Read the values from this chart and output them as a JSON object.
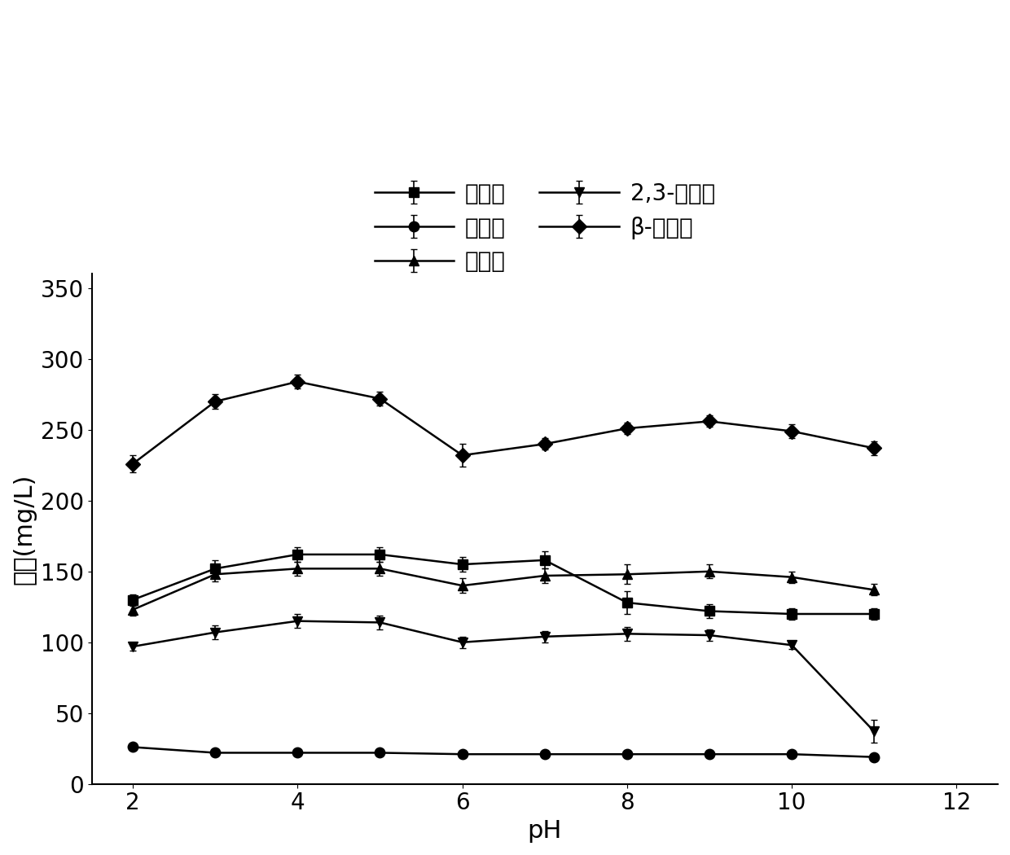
{
  "x": [
    2,
    3,
    4,
    5,
    6,
    7,
    8,
    9,
    10,
    11
  ],
  "series_order": [
    "正丙醇",
    "异丁醇",
    "异戊醇",
    "2,3-丁二醇",
    "β-苯乙醇"
  ],
  "series": {
    "正丙醇": {
      "y": [
        130,
        152,
        162,
        162,
        155,
        158,
        128,
        122,
        120,
        120
      ],
      "yerr": [
        4,
        6,
        5,
        5,
        5,
        6,
        8,
        5,
        4,
        4
      ],
      "marker": "s",
      "label": "正丙醇"
    },
    "异丁醇": {
      "y": [
        26,
        22,
        22,
        22,
        21,
        21,
        21,
        21,
        21,
        19
      ],
      "yerr": [
        1,
        1,
        1,
        1,
        1,
        1,
        1,
        1,
        1,
        1
      ],
      "marker": "o",
      "label": "异丁醇"
    },
    "异戊醇": {
      "y": [
        123,
        148,
        152,
        152,
        140,
        147,
        148,
        150,
        146,
        137
      ],
      "yerr": [
        4,
        5,
        5,
        5,
        5,
        5,
        7,
        5,
        4,
        4
      ],
      "marker": "^",
      "label": "异戊醇"
    },
    "2,3-丁二醇": {
      "y": [
        97,
        107,
        115,
        114,
        100,
        104,
        106,
        105,
        98,
        37
      ],
      "yerr": [
        3,
        5,
        5,
        5,
        4,
        4,
        5,
        4,
        3,
        8
      ],
      "marker": "v",
      "label": "2,3-丁二醇"
    },
    "β-苯乙醇": {
      "y": [
        226,
        270,
        284,
        272,
        232,
        240,
        251,
        256,
        249,
        237
      ],
      "yerr": [
        6,
        5,
        5,
        5,
        8,
        4,
        4,
        4,
        5,
        5
      ],
      "marker": "D",
      "label": "β-苯乙醇"
    }
  },
  "xlabel": "pH",
  "ylabel": "含量(mg/L)",
  "xlim": [
    1.5,
    12.5
  ],
  "ylim": [
    0,
    360
  ],
  "yticks": [
    0,
    50,
    100,
    150,
    200,
    250,
    300,
    350
  ],
  "xticks": [
    2,
    4,
    6,
    8,
    10,
    12
  ],
  "color": "#000000",
  "linewidth": 1.8,
  "markersize": 9,
  "legend_fontsize": 20,
  "axis_fontsize": 22,
  "tick_fontsize": 20
}
